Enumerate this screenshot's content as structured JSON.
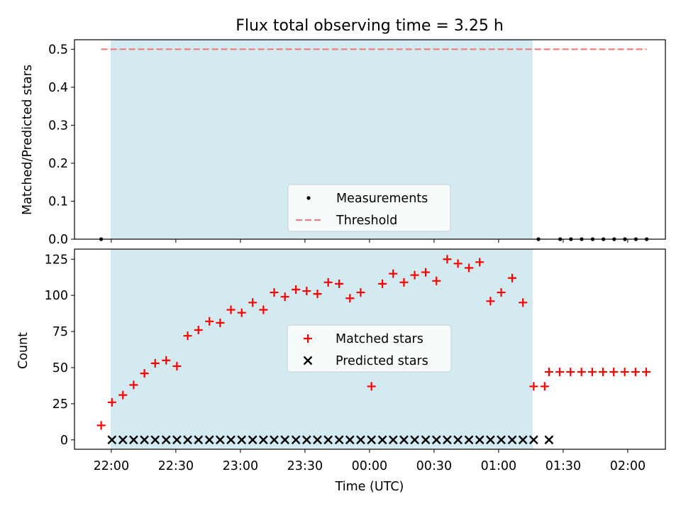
{
  "title": "Flux total observing time = 3.25 h",
  "colors": {
    "shade": "#d3eaf0",
    "shade_edge": "#bfe0e6",
    "threshold": "#f08080",
    "matched": "#ff0000",
    "predicted": "#000000",
    "measurement": "#000000"
  },
  "chart_data": [
    {
      "type": "scatter",
      "panel": "top",
      "ylabel": "Matched/Predicted stars",
      "xlabel": "",
      "ylim": [
        0,
        0.525
      ],
      "yticks": [
        "0.0",
        "0.1",
        "0.2",
        "0.3",
        "0.4",
        "0.5"
      ],
      "ytick_values": [
        0,
        0.1,
        0.2,
        0.3,
        0.4,
        0.5
      ],
      "xticks_minutes": [
        0,
        30,
        60,
        90,
        120,
        150,
        180,
        210,
        240
      ],
      "shaded_interval_minutes": [
        0,
        195.5
      ],
      "legend": {
        "position": "lower-center",
        "entries": [
          "Measurements",
          "Threshold"
        ]
      },
      "series": [
        {
          "name": "Measurements",
          "marker": "dot",
          "x_minutes": [
            -4.7,
            198.5,
            208.6,
            213.6,
            218.6,
            223.7,
            228.7,
            233.7,
            238.7,
            243.8,
            248.8
          ],
          "values": [
            0,
            0,
            0,
            0,
            0,
            0,
            0,
            0,
            0,
            0,
            0
          ]
        },
        {
          "name": "Threshold",
          "style": "dashed-line",
          "x_minutes": [
            -4.7,
            248.8
          ],
          "values": [
            0.5,
            0.5
          ]
        }
      ]
    },
    {
      "type": "scatter",
      "panel": "bottom",
      "ylabel": "Count",
      "xlabel": "Time (UTC)",
      "ylim": [
        -6.5,
        132
      ],
      "yticks": [
        "0",
        "25",
        "50",
        "75",
        "100",
        "125"
      ],
      "ytick_values": [
        0,
        25,
        50,
        75,
        100,
        125
      ],
      "xtick_labels": [
        "22:00",
        "22:30",
        "23:00",
        "23:30",
        "00:00",
        "00:30",
        "01:00",
        "01:30",
        "02:00"
      ],
      "xticks_minutes": [
        0,
        30,
        60,
        90,
        120,
        150,
        180,
        210,
        240
      ],
      "xlim_minutes": [
        -17.1,
        257.5
      ],
      "shaded_interval_minutes": [
        0,
        195.5
      ],
      "legend": {
        "position": "center",
        "entries": [
          "Matched stars",
          "Predicted stars"
        ]
      },
      "series": [
        {
          "name": "Matched stars",
          "marker": "plus",
          "x_minutes": [
            -4.7,
            0.3,
            5.4,
            10.4,
            15.4,
            20.4,
            25.5,
            30.5,
            35.5,
            40.5,
            45.6,
            50.6,
            55.6,
            60.6,
            65.7,
            70.7,
            75.7,
            80.7,
            85.8,
            90.8,
            95.8,
            100.8,
            105.9,
            110.9,
            115.9,
            120.9,
            126.0,
            131.0,
            136.0,
            141.0,
            146.1,
            151.1,
            156.1,
            161.1,
            166.2,
            171.2,
            176.2,
            181.2,
            186.3,
            191.3,
            196.3,
            201.4,
            203.4,
            208.4,
            213.4,
            218.5,
            223.5,
            228.5,
            233.5,
            238.6,
            243.6,
            248.6
          ],
          "values": [
            10,
            26,
            31,
            38,
            46,
            53,
            55,
            51,
            72,
            76,
            82,
            81,
            90,
            88,
            95,
            90,
            102,
            99,
            104,
            103,
            101,
            109,
            108,
            98,
            102,
            37,
            108,
            115,
            109,
            114,
            116,
            110,
            125,
            122,
            119,
            123,
            96,
            102,
            112,
            95,
            37,
            37,
            47,
            47,
            47,
            47,
            47,
            47,
            47,
            47,
            47,
            47
          ]
        },
        {
          "name": "Predicted stars",
          "marker": "x",
          "x_minutes": [
            0.3,
            5.4,
            10.4,
            15.4,
            20.4,
            25.5,
            30.5,
            35.5,
            40.5,
            45.6,
            50.6,
            55.6,
            60.6,
            65.7,
            70.7,
            75.7,
            80.7,
            85.8,
            90.8,
            95.8,
            100.8,
            105.9,
            110.9,
            115.9,
            120.9,
            126.0,
            131.0,
            136.0,
            141.0,
            146.1,
            151.1,
            156.1,
            161.1,
            166.2,
            171.2,
            176.2,
            181.2,
            186.3,
            191.3,
            196.3,
            203.4
          ],
          "values": [
            0,
            0,
            0,
            0,
            0,
            0,
            0,
            0,
            0,
            0,
            0,
            0,
            0,
            0,
            0,
            0,
            0,
            0,
            0,
            0,
            0,
            0,
            0,
            0,
            0,
            0,
            0,
            0,
            0,
            0,
            0,
            0,
            0,
            0,
            0,
            0,
            0,
            0,
            0,
            0,
            0
          ]
        }
      ]
    }
  ]
}
